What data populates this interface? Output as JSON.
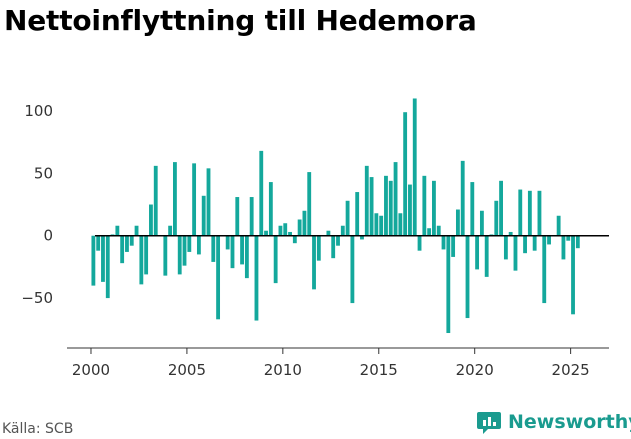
{
  "title": "Nettoinflyttning till Hedemora",
  "source": "Källa: SCB",
  "brand": {
    "name": "Newsworthy",
    "icon": "newsworthy-chart-logo-icon",
    "color": "#1a9b8f"
  },
  "chart_data": {
    "type": "bar",
    "title": "Nettoinflyttning till Hedemora",
    "xlabel": "",
    "ylabel": "",
    "color": "#14a89c",
    "xlim": [
      1998.75,
      2027.0
    ],
    "ylim": [
      -90,
      120
    ],
    "yticks": [
      -50,
      0,
      50,
      100
    ],
    "xticks": [
      2000,
      2005,
      2010,
      2015,
      2020,
      2025
    ],
    "grid": false,
    "x": [
      2000.125,
      2000.375,
      2000.625,
      2000.875,
      2001.125,
      2001.375,
      2001.625,
      2001.875,
      2002.125,
      2002.375,
      2002.625,
      2002.875,
      2003.125,
      2003.375,
      2003.625,
      2003.875,
      2004.125,
      2004.375,
      2004.625,
      2004.875,
      2005.125,
      2005.375,
      2005.625,
      2005.875,
      2006.125,
      2006.375,
      2006.625,
      2006.875,
      2007.125,
      2007.375,
      2007.625,
      2007.875,
      2008.125,
      2008.375,
      2008.625,
      2008.875,
      2009.125,
      2009.375,
      2009.625,
      2009.875,
      2010.125,
      2010.375,
      2010.625,
      2010.875,
      2011.125,
      2011.375,
      2011.625,
      2011.875,
      2012.125,
      2012.375,
      2012.625,
      2012.875,
      2013.125,
      2013.375,
      2013.625,
      2013.875,
      2014.125,
      2014.375,
      2014.625,
      2014.875,
      2015.125,
      2015.375,
      2015.625,
      2015.875,
      2016.125,
      2016.375,
      2016.625,
      2016.875,
      2017.125,
      2017.375,
      2017.625,
      2017.875,
      2018.125,
      2018.375,
      2018.625,
      2018.875,
      2019.125,
      2019.375,
      2019.625,
      2019.875,
      2020.125,
      2020.375,
      2020.625,
      2020.875,
      2021.125,
      2021.375,
      2021.625,
      2021.875,
      2022.125,
      2022.375,
      2022.625,
      2022.875,
      2023.125,
      2023.375,
      2023.625,
      2023.875,
      2024.125,
      2024.375,
      2024.625,
      2024.875,
      2025.125,
      2025.375
    ],
    "values": [
      -40,
      -12,
      -37,
      -50,
      1,
      8,
      -22,
      -13,
      -8,
      8,
      -39,
      -31,
      25,
      56,
      0,
      -32,
      8,
      59,
      -31,
      -24,
      -13,
      58,
      -15,
      32,
      54,
      -21,
      -67,
      0,
      -11,
      -26,
      31,
      -23,
      -34,
      31,
      -68,
      68,
      4,
      43,
      -38,
      8,
      10,
      3,
      -6,
      13,
      20,
      51,
      -43,
      -20,
      0,
      4,
      -18,
      -8,
      8,
      28,
      -54,
      35,
      -3,
      56,
      47,
      18,
      16,
      48,
      44,
      59,
      18,
      99,
      41,
      110,
      -12,
      48,
      6,
      44,
      8,
      -11,
      -78,
      -17,
      21,
      60,
      -66,
      43,
      -27,
      20,
      -33,
      1,
      28,
      44,
      -19,
      3,
      -28,
      37,
      -14,
      36,
      -12,
      36,
      -54,
      -7,
      0,
      16,
      -19,
      -4,
      -63,
      -10
    ]
  }
}
